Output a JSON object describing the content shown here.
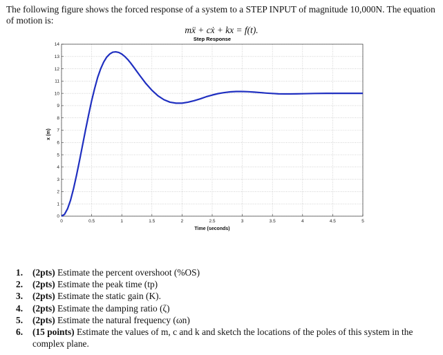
{
  "intro_text": "The following figure shows the forced response of a system to a STEP INPUT of magnitude 10,000N. The equation of motion is:",
  "equation": "mẍ + cẋ + kx = f(t).",
  "chart_data": {
    "type": "line",
    "title": "Step Response",
    "xlabel": "Time (seconds)",
    "ylabel": "x (m)",
    "xlim": [
      0,
      5
    ],
    "ylim": [
      0,
      14
    ],
    "xticks": [
      "0",
      "0.5",
      "1",
      "1.5",
      "2",
      "2.5",
      "3",
      "3.5",
      "4",
      "4.5",
      "5"
    ],
    "yticks": [
      "0",
      "1",
      "2",
      "3",
      "4",
      "5",
      "6",
      "7",
      "8",
      "9",
      "10",
      "11",
      "12",
      "13",
      "14"
    ],
    "grid": true,
    "line_color": "#1f2fc0",
    "series": [
      {
        "x": [
          0,
          0.05,
          0.1,
          0.15,
          0.2,
          0.25,
          0.3,
          0.35,
          0.4,
          0.45,
          0.5,
          0.55,
          0.6,
          0.65,
          0.7,
          0.75,
          0.8,
          0.85,
          0.9,
          0.95,
          1.0,
          1.05,
          1.1,
          1.15,
          1.2,
          1.3,
          1.4,
          1.5,
          1.6,
          1.7,
          1.8,
          1.9,
          2.0,
          2.1,
          2.2,
          2.3,
          2.4,
          2.5,
          2.6,
          2.7,
          2.8,
          2.9,
          3.0,
          3.1,
          3.2,
          3.3,
          3.4,
          3.5,
          3.6,
          3.7,
          3.8,
          3.9,
          4.0,
          4.2,
          4.4,
          4.6,
          4.8,
          5.0
        ],
        "y": [
          0,
          0.15,
          0.6,
          1.3,
          2.25,
          3.35,
          4.55,
          5.8,
          7.05,
          8.25,
          9.4,
          10.4,
          11.3,
          12.0,
          12.55,
          12.95,
          13.2,
          13.35,
          13.38,
          13.33,
          13.2,
          13.0,
          12.75,
          12.45,
          12.12,
          11.45,
          10.8,
          10.25,
          9.8,
          9.48,
          9.28,
          9.2,
          9.2,
          9.28,
          9.4,
          9.55,
          9.72,
          9.86,
          9.98,
          10.06,
          10.12,
          10.15,
          10.15,
          10.13,
          10.1,
          10.06,
          10.02,
          9.99,
          9.96,
          9.95,
          9.95,
          9.96,
          9.97,
          9.99,
          10.0,
          10.0,
          10.0,
          10.0
        ]
      }
    ]
  },
  "questions": [
    {
      "num": "1.",
      "pts": "(2pts)",
      "text": " Estimate the percent overshoot (%OS)"
    },
    {
      "num": "2.",
      "pts": "(2pts)",
      "text": " Estimate the peak time (tp)"
    },
    {
      "num": "3.",
      "pts": "(2pts)",
      "text": " Estimate the static gain (K)."
    },
    {
      "num": "4.",
      "pts": "(2pts)",
      "text": " Estimate the damping ratio (ζ)"
    },
    {
      "num": "5.",
      "pts": "(2pts)",
      "text": " Estimate the natural frequency (ωn)"
    },
    {
      "num": "6.",
      "pts": "(15 points)",
      "text": " Estimate the values of m, c and k and sketch the locations of the poles of this system in the complex plane."
    }
  ]
}
